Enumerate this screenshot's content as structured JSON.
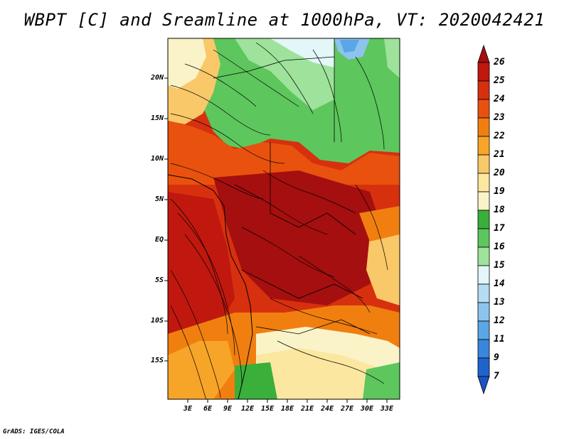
{
  "title": "WBPT [C] and Sreamline at 1000hPa, VT: 2020042421",
  "credit": "GrADS: IGES/COLA",
  "lat_labels": [
    "20N",
    "15N",
    "10N",
    "5N",
    "EQ",
    "5S",
    "10S",
    "15S"
  ],
  "lon_labels": [
    "3E",
    "6E",
    "9E",
    "12E",
    "15E",
    "18E",
    "21E",
    "24E",
    "27E",
    "30E",
    "33E"
  ],
  "colorbar": {
    "labels": [
      "26",
      "25",
      "24",
      "23",
      "22",
      "21",
      "20",
      "19",
      "18",
      "17",
      "16",
      "15",
      "14",
      "13",
      "12",
      "11",
      "9",
      "7"
    ],
    "colors": [
      "#a50f0f",
      "#c0180f",
      "#d7300f",
      "#e8520e",
      "#f07f10",
      "#f7a528",
      "#f9c868",
      "#fce7a0",
      "#faf3c8",
      "#3aaf3a",
      "#5dc65d",
      "#9ee29b",
      "#e3f6f8",
      "#b4dcf4",
      "#8cc4ee",
      "#5aa6e6",
      "#3a86dc",
      "#2163cc",
      "#1a54c0"
    ]
  },
  "chart_data": {
    "type": "heatmap",
    "variable": "WBPT [C]",
    "level": "1000hPa",
    "valid_time": "2020042421",
    "lon_range": [
      0,
      35
    ],
    "lat_range": [
      -19.5,
      24.5
    ]
  }
}
